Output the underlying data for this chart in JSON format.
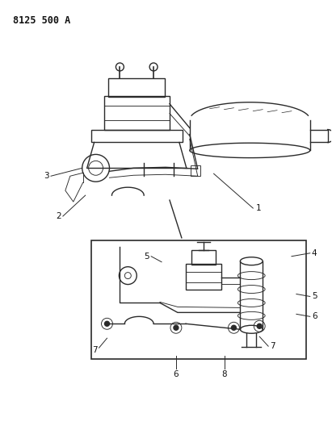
{
  "title_code": "8125 500 A",
  "background_color": "#ffffff",
  "line_color": "#2a2a2a",
  "label_color": "#111111",
  "figsize": [
    4.11,
    5.33
  ],
  "dpi": 100,
  "label_fontsize": 7.5,
  "title_fontsize": 8.5
}
